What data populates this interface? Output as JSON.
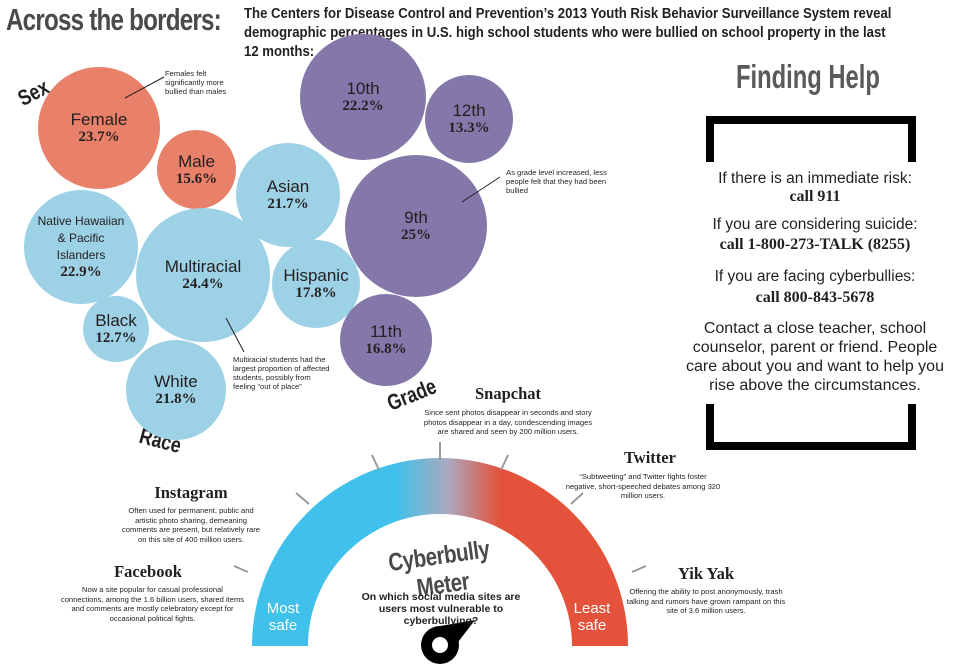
{
  "header": {
    "headline": "Across the borders:",
    "subhead": "The Centers for Disease Control and Prevention’s 2013 Youth Risk Behavior Surveillance System reveal demographic percentages in U.S. high school students who were bullied on school property in the last 12 months:"
  },
  "categories": {
    "sex": "Sex",
    "race": "Race",
    "grade": "Grade"
  },
  "bubbles": {
    "female": {
      "name": "Female",
      "pct": "23.7%"
    },
    "male": {
      "name": "Male",
      "pct": "15.6%"
    },
    "asian": {
      "name": "Asian",
      "pct": "21.7%"
    },
    "nhpi": {
      "name": "Native Hawaiian & Pacific Islanders",
      "pct": "22.9%"
    },
    "multiracial": {
      "name": "Multiracial",
      "pct": "24.4%"
    },
    "hispanic": {
      "name": "Hispanic",
      "pct": "17.8%"
    },
    "black": {
      "name": "Black",
      "pct": "12.7%"
    },
    "white": {
      "name": "White",
      "pct": "21.8%"
    },
    "g10": {
      "name": "10th",
      "pct": "22.2%"
    },
    "g12": {
      "name": "12th",
      "pct": "13.3%"
    },
    "g9": {
      "name": "9th",
      "pct": "25%"
    },
    "g11": {
      "name": "11th",
      "pct": "16.8%"
    }
  },
  "notes": {
    "female": "Females felt significantly more bullied than males",
    "grade": "As grade level increased, less people felt that they had been bullied",
    "multiracial": "Multiracial students had the largest proportion of affected students, possibly from feeling “out of place”"
  },
  "finding_help": {
    "title": "Finding Help",
    "risk_label": "If there is an immediate risk:",
    "risk_number": "call 911",
    "suicide_label": "If you are considering suicide:",
    "suicide_number": "call 1-800-273-TALK (8255)",
    "cyber_label": "If you are facing cyberbullies:",
    "cyber_number": "call 800-843-5678",
    "contact": "Contact a close teacher, school counselor, parent or friend. People care about you and want to help you rise above the circumstances."
  },
  "meter": {
    "title": "Cyberbully Meter",
    "question": "On which social media sites are users most vulnerable to cyberbullying?",
    "left_label_1": "Most",
    "left_label_2": "safe",
    "right_label_1": "Least",
    "right_label_2": "safe",
    "colors": {
      "safe": "#3fc1ec",
      "mid": "#a9a9bf",
      "unsafe": "#e4523b"
    }
  },
  "sites": {
    "facebook": {
      "name": "Facebook",
      "desc": "Now a site popular for casual professional connections, among the 1.6 billion users, shared items and comments are mostly celebratory except for occasional political fights."
    },
    "instagram": {
      "name": "Instagram",
      "desc": "Often used for permanent, public and artistic photo sharing, demeaning comments are present, but relatively rare on this site of 400 million users."
    },
    "snapchat": {
      "name": "Snapchat",
      "desc": "Since sent photos disappear in seconds and story photos disappear in a day, condescending images are shared and seen by 200 million users."
    },
    "twitter": {
      "name": "Twitter",
      "desc": "“Subtweeting” and Twitter fights foster negative, short-speeched debates among 320 million users."
    },
    "yikyak": {
      "name": "Yik Yak",
      "desc": "Offering the ability to post anonymously, trash talking and rumors have grown rampant on this site of 3.6 million users."
    }
  }
}
